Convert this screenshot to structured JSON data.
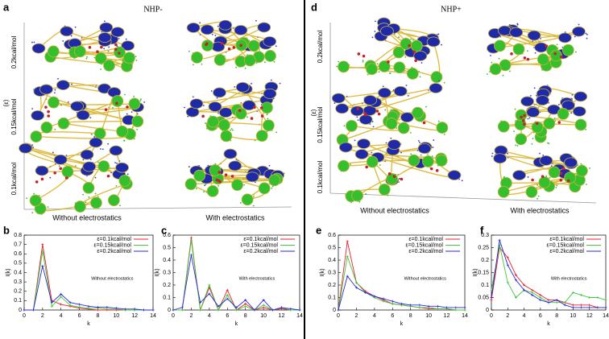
{
  "panels": {
    "a": {
      "label": "a",
      "title": "NHP-",
      "y_label": "(ε)",
      "rows": [
        "0.2kcal/mol",
        "0.15kcal/mol",
        "0.1kcal/mol"
      ],
      "columns": [
        "Without electrostatics",
        "With electrostatics"
      ]
    },
    "d": {
      "label": "d",
      "title": "NHP+",
      "y_label": "(ε)",
      "rows": [
        "0.2kcal/mol",
        "0.15kcal/mol",
        "0.1kcal/mol"
      ],
      "columns": [
        "Without electrostatics",
        "With electrostatics"
      ]
    }
  },
  "chart_data": [
    {
      "type": "line",
      "panel": "b",
      "annotation": "Without electrostatics",
      "x_label": "k",
      "y_label": "I(k)",
      "x": [
        0,
        1,
        2,
        3,
        4,
        5,
        6,
        7,
        8,
        9,
        10,
        11,
        12,
        13,
        14
      ],
      "xlim": [
        0,
        14
      ],
      "xticks": [
        0,
        2,
        4,
        6,
        8,
        10,
        12,
        14
      ],
      "ylim": [
        0,
        0.8
      ],
      "yticks": [
        0,
        0.1,
        0.2,
        0.3,
        0.4,
        0.5,
        0.6,
        0.7,
        0.8
      ],
      "legend": "upper right",
      "series": [
        {
          "name": "ε=0.1kcal/mol",
          "color": "#e8202a",
          "values": [
            0,
            0,
            0.7,
            0.1,
            0.06,
            0.04,
            0.02,
            0.01,
            0,
            0,
            0,
            0,
            0,
            0,
            0
          ]
        },
        {
          "name": "ε=0.15kcal/mol",
          "color": "#3ec83a",
          "values": [
            0,
            0,
            0.63,
            0.04,
            0.14,
            0.05,
            0.03,
            0.02,
            0.02,
            0.01,
            0.01,
            0,
            0,
            0,
            0
          ]
        },
        {
          "name": "ε=0.2kcal/mol",
          "color": "#2a2ad8",
          "values": [
            0,
            0,
            0.47,
            0.08,
            0.17,
            0.08,
            0.06,
            0.04,
            0.03,
            0.03,
            0.02,
            0.01,
            0.01,
            0,
            0
          ]
        }
      ]
    },
    {
      "type": "line",
      "panel": "c",
      "annotation": "With electrostatics",
      "x_label": "k",
      "y_label": "I(k)",
      "x": [
        0,
        1,
        2,
        3,
        4,
        5,
        6,
        7,
        8,
        9,
        10,
        11,
        12,
        13,
        14
      ],
      "xlim": [
        0,
        14
      ],
      "xticks": [
        0,
        2,
        4,
        6,
        8,
        10,
        12,
        14
      ],
      "ylim": [
        0,
        0.6
      ],
      "yticks": [
        0,
        0.1,
        0.2,
        0.3,
        0.4,
        0.5,
        0.6
      ],
      "legend": "upper right",
      "series": [
        {
          "name": "ε=0.1kcal/mol",
          "color": "#e8202a",
          "values": [
            0,
            0,
            0.58,
            0,
            0.18,
            0,
            0.16,
            0,
            0.05,
            0,
            0.02,
            0,
            0.01,
            0,
            0
          ]
        },
        {
          "name": "ε=0.15kcal/mol",
          "color": "#3ec83a",
          "values": [
            0,
            0,
            0.56,
            0,
            0.2,
            0,
            0.12,
            0,
            0.03,
            0,
            0.04,
            0,
            0.02,
            0,
            0
          ]
        },
        {
          "name": "ε=0.2kcal/mol",
          "color": "#2a2ad8",
          "values": [
            0,
            0.02,
            0.44,
            0.06,
            0.13,
            0.03,
            0.09,
            0.02,
            0.08,
            0,
            0.08,
            0,
            0.02,
            0.01,
            0
          ]
        }
      ]
    },
    {
      "type": "line",
      "panel": "e",
      "annotation": "Without electrostatics",
      "x_label": "k",
      "y_label": "I(k)",
      "x": [
        0,
        1,
        2,
        3,
        4,
        5,
        6,
        7,
        8,
        9,
        10,
        11,
        12,
        13,
        14
      ],
      "xlim": [
        0,
        14
      ],
      "xticks": [
        0,
        2,
        4,
        6,
        8,
        10,
        12,
        14
      ],
      "ylim": [
        0,
        0.6
      ],
      "yticks": [
        0,
        0.1,
        0.2,
        0.3,
        0.4,
        0.5,
        0.6
      ],
      "legend": "upper right",
      "series": [
        {
          "name": "ε=0.1kcal/mol",
          "color": "#e8202a",
          "values": [
            0,
            0.55,
            0.22,
            0.15,
            0.11,
            0.08,
            0.05,
            0.04,
            0.03,
            0.02,
            0.01,
            0.01,
            0.01,
            0,
            0
          ]
        },
        {
          "name": "ε=0.15kcal/mol",
          "color": "#3ec83a",
          "values": [
            0,
            0.43,
            0.22,
            0.14,
            0.1,
            0.07,
            0.05,
            0.04,
            0.03,
            0.02,
            0.02,
            0.01,
            0.01,
            0,
            0
          ]
        },
        {
          "name": "ε=0.2kcal/mol",
          "color": "#2a2ad8",
          "values": [
            0,
            0.27,
            0.18,
            0.14,
            0.11,
            0.09,
            0.07,
            0.05,
            0.04,
            0.04,
            0.03,
            0.03,
            0.02,
            0.02,
            0.02
          ]
        }
      ]
    },
    {
      "type": "line",
      "panel": "f",
      "annotation": "With electrostatics",
      "x_label": "k",
      "y_label": "I(k)",
      "x": [
        0,
        1,
        2,
        3,
        4,
        5,
        6,
        7,
        8,
        9,
        10,
        11,
        12,
        13,
        14
      ],
      "xlim": [
        0,
        14
      ],
      "xticks": [
        0,
        2,
        4,
        6,
        8,
        10,
        12,
        14
      ],
      "ylim": [
        0,
        0.3
      ],
      "yticks": [
        0,
        0.05,
        0.1,
        0.15,
        0.2,
        0.25,
        0.3
      ],
      "legend": "upper right",
      "series": [
        {
          "name": "ε=0.1kcal/mol",
          "color": "#e8202a",
          "values": [
            0.04,
            0.25,
            0.21,
            0.14,
            0.1,
            0.08,
            0.06,
            0.04,
            0.04,
            0.03,
            0.02,
            0.02,
            0.02,
            0.01,
            0.01
          ]
        },
        {
          "name": "ε=0.15kcal/mol",
          "color": "#3ec83a",
          "values": [
            0.08,
            0.26,
            0.11,
            0.05,
            0.08,
            0.07,
            0.05,
            0.03,
            0.03,
            0.03,
            0.07,
            0.06,
            0.05,
            0.05,
            0.04
          ]
        },
        {
          "name": "ε=0.2kcal/mol",
          "color": "#2a2ad8",
          "values": [
            0.05,
            0.28,
            0.18,
            0.12,
            0.08,
            0.06,
            0.04,
            0.03,
            0.04,
            0.02,
            0.01,
            0.01,
            0.01,
            0.01,
            0.01
          ]
        }
      ]
    }
  ]
}
